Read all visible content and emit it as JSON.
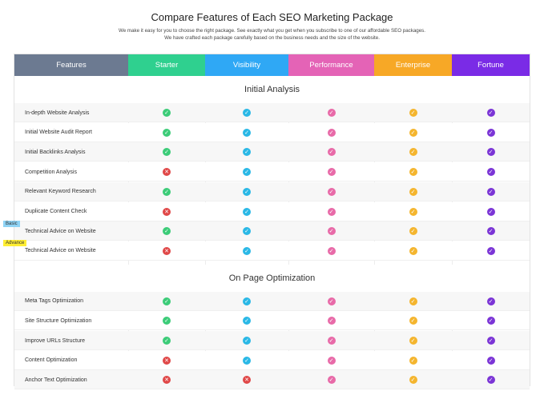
{
  "page": {
    "title": "Compare Features of Each SEO Marketing Package",
    "subtitle_line1": "We make it easy for you to choose the right package. See exactly what you get when you subscribe to one of our affordable SEO packages.",
    "subtitle_line2": "We have crafted each package carefully based on the business needs and the size of the website."
  },
  "columns": [
    {
      "label": "Features",
      "color": "#6c7a91"
    },
    {
      "label": "Starter",
      "color": "#2fd08f"
    },
    {
      "label": "Visibility",
      "color": "#2fa8f5"
    },
    {
      "label": "Performance",
      "color": "#e463b6"
    },
    {
      "label": "Enterprise",
      "color": "#f7a826"
    },
    {
      "label": "Fortune",
      "color": "#7a2be6"
    }
  ],
  "status_colors": {
    "starter": "#3ccc78",
    "visibility": "#2ab8e6",
    "performance": "#e86aa8",
    "enterprise": "#f4b52e",
    "fortune": "#7b35d6",
    "no": "#e04848"
  },
  "sections": [
    {
      "title": "Initial Analysis",
      "rows": [
        {
          "label": "In-depth Website Analysis",
          "values": [
            true,
            true,
            true,
            true,
            true
          ]
        },
        {
          "label": "Initial Website Audit Report",
          "values": [
            true,
            true,
            true,
            true,
            true
          ]
        },
        {
          "label": "Initial Backlinks Analysis",
          "values": [
            true,
            true,
            true,
            true,
            true
          ]
        },
        {
          "label": "Competition Analysis",
          "values": [
            false,
            true,
            true,
            true,
            true
          ]
        },
        {
          "label": "Relevant Keyword Research",
          "values": [
            true,
            true,
            true,
            true,
            true
          ]
        },
        {
          "label": "Duplicate Content Check",
          "values": [
            false,
            true,
            true,
            true,
            true
          ]
        },
        {
          "label": "Technical Advice on Website",
          "values": [
            true,
            true,
            true,
            true,
            true
          ]
        },
        {
          "label": "Technical Advice on Website",
          "values": [
            false,
            true,
            true,
            true,
            true
          ]
        }
      ]
    },
    {
      "title": "On Page Optimization",
      "rows": [
        {
          "label": "Meta Tags Optimization",
          "values": [
            true,
            true,
            true,
            true,
            true
          ]
        },
        {
          "label": "Site Structure Optimization",
          "values": [
            true,
            true,
            true,
            true,
            true
          ]
        },
        {
          "label": "Improve URLs Structure",
          "values": [
            true,
            true,
            true,
            true,
            true
          ]
        },
        {
          "label": "Content Optimization",
          "values": [
            false,
            true,
            true,
            true,
            true
          ]
        },
        {
          "label": "Anchor Text Optimization",
          "values": [
            false,
            false,
            true,
            true,
            true
          ]
        }
      ]
    }
  ],
  "tags": {
    "basic": "Basic",
    "advance": "Advance"
  },
  "icons": {
    "yes": "check-icon",
    "no": "cross-icon"
  }
}
